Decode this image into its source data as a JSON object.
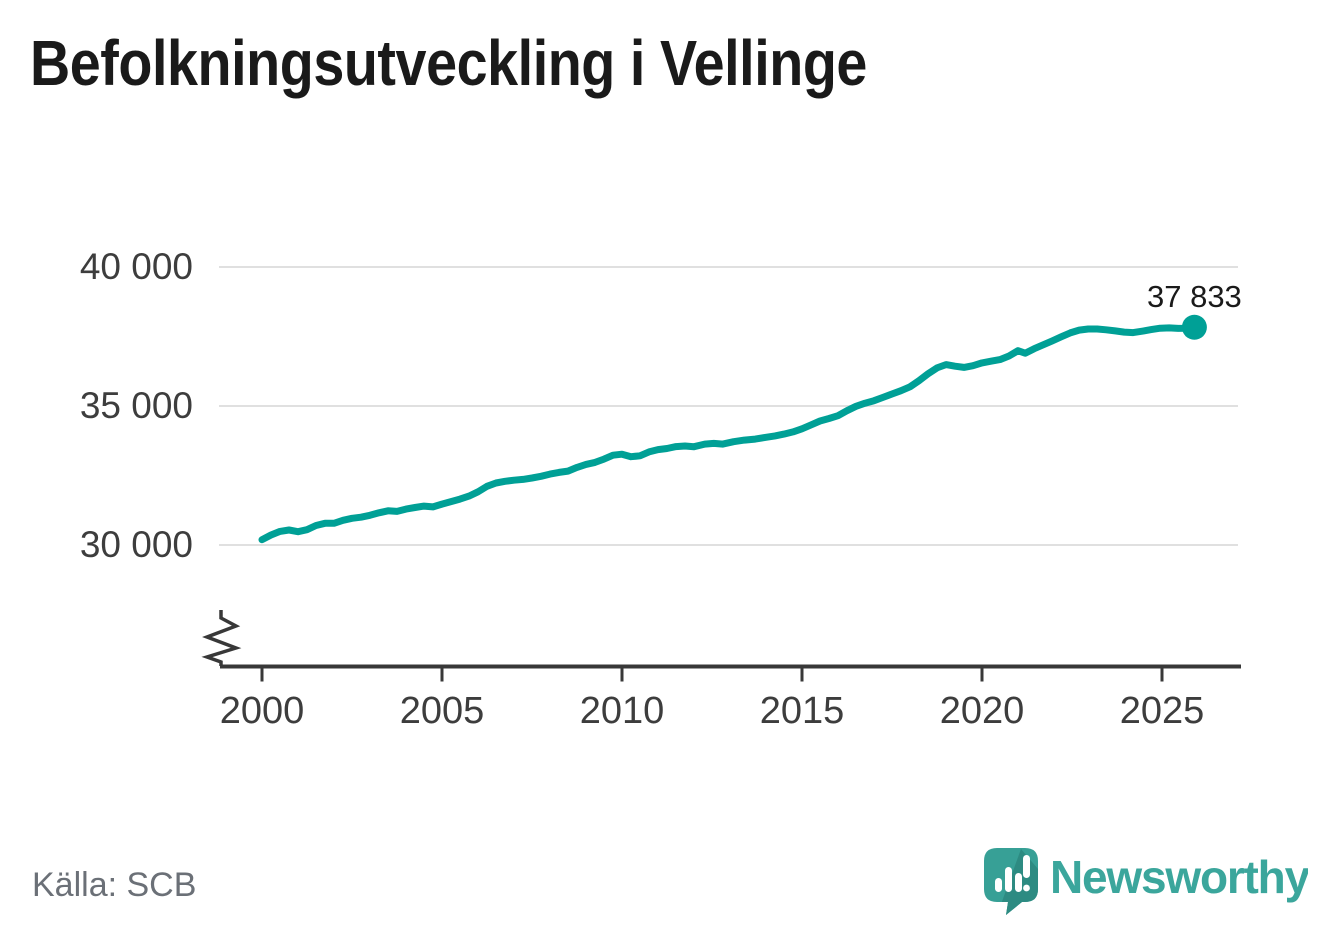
{
  "page": {
    "title": "Befolkningsutveckling i Vellinge"
  },
  "footer": {
    "source_label": "Källa: SCB",
    "brand_name": "Newsworthy"
  },
  "colors": {
    "line": "#00a096",
    "grid": "#e0e0e0",
    "axis": "#383838",
    "tick_text": "#3d3d3d",
    "annotation_text": "#1a1a1a",
    "source_text": "#6b7077",
    "brand_text": "#3ba69c",
    "brand_bubble": "#37a096",
    "brand_bubble_shade": "#2d8b82"
  },
  "chart_data": {
    "type": "line",
    "title": "Befolkningsutveckling i Vellinge",
    "xlabel": "",
    "ylabel": "",
    "grid": "horizontal-only",
    "legend": "none",
    "axis_break_bottom_left": true,
    "xlim": [
      1998.8,
      2027.2
    ],
    "ylim": [
      30000,
      40000
    ],
    "x_ticks": [
      {
        "value": 2000,
        "label": "2000"
      },
      {
        "value": 2005,
        "label": "2005"
      },
      {
        "value": 2010,
        "label": "2010"
      },
      {
        "value": 2015,
        "label": "2015"
      },
      {
        "value": 2020,
        "label": "2020"
      },
      {
        "value": 2025,
        "label": "2025"
      }
    ],
    "y_ticks": [
      {
        "value": 30000,
        "label": "30 000"
      },
      {
        "value": 35000,
        "label": "35 000"
      },
      {
        "value": 40000,
        "label": "40 000"
      }
    ],
    "end_annotation": {
      "label": "37 833",
      "value": 37833,
      "x": 2025.9
    },
    "series": [
      {
        "name": "Befolkning i Vellinge",
        "points": [
          [
            2000.0,
            30190
          ],
          [
            2000.25,
            30360
          ],
          [
            2000.5,
            30490
          ],
          [
            2000.75,
            30540
          ],
          [
            2001.0,
            30480
          ],
          [
            2001.25,
            30550
          ],
          [
            2001.5,
            30700
          ],
          [
            2001.75,
            30780
          ],
          [
            2002.0,
            30780
          ],
          [
            2002.25,
            30890
          ],
          [
            2002.5,
            30960
          ],
          [
            2002.75,
            31000
          ],
          [
            2003.0,
            31070
          ],
          [
            2003.25,
            31160
          ],
          [
            2003.5,
            31230
          ],
          [
            2003.75,
            31210
          ],
          [
            2004.0,
            31290
          ],
          [
            2004.25,
            31350
          ],
          [
            2004.5,
            31400
          ],
          [
            2004.75,
            31370
          ],
          [
            2005.0,
            31470
          ],
          [
            2005.25,
            31560
          ],
          [
            2005.5,
            31650
          ],
          [
            2005.75,
            31760
          ],
          [
            2006.0,
            31915
          ],
          [
            2006.25,
            32110
          ],
          [
            2006.5,
            32230
          ],
          [
            2006.75,
            32290
          ],
          [
            2007.0,
            32330
          ],
          [
            2007.25,
            32360
          ],
          [
            2007.5,
            32410
          ],
          [
            2007.75,
            32470
          ],
          [
            2008.0,
            32550
          ],
          [
            2008.25,
            32610
          ],
          [
            2008.5,
            32660
          ],
          [
            2008.75,
            32790
          ],
          [
            2009.0,
            32900
          ],
          [
            2009.25,
            32970
          ],
          [
            2009.5,
            33090
          ],
          [
            2009.75,
            33230
          ],
          [
            2010.0,
            33265
          ],
          [
            2010.25,
            33175
          ],
          [
            2010.5,
            33210
          ],
          [
            2010.75,
            33350
          ],
          [
            2011.0,
            33430
          ],
          [
            2011.25,
            33470
          ],
          [
            2011.5,
            33540
          ],
          [
            2011.75,
            33560
          ],
          [
            2012.0,
            33535
          ],
          [
            2012.3,
            33630
          ],
          [
            2012.55,
            33655
          ],
          [
            2012.8,
            33630
          ],
          [
            2013.1,
            33715
          ],
          [
            2013.4,
            33775
          ],
          [
            2013.7,
            33810
          ],
          [
            2014.0,
            33875
          ],
          [
            2014.25,
            33925
          ],
          [
            2014.5,
            33990
          ],
          [
            2014.75,
            34070
          ],
          [
            2015.0,
            34180
          ],
          [
            2015.25,
            34320
          ],
          [
            2015.5,
            34460
          ],
          [
            2015.75,
            34550
          ],
          [
            2016.0,
            34650
          ],
          [
            2016.25,
            34830
          ],
          [
            2016.5,
            34990
          ],
          [
            2016.75,
            35100
          ],
          [
            2017.0,
            35190
          ],
          [
            2017.25,
            35310
          ],
          [
            2017.5,
            35430
          ],
          [
            2017.75,
            35550
          ],
          [
            2018.0,
            35690
          ],
          [
            2018.25,
            35910
          ],
          [
            2018.5,
            36160
          ],
          [
            2018.75,
            36370
          ],
          [
            2019.0,
            36490
          ],
          [
            2019.25,
            36430
          ],
          [
            2019.5,
            36390
          ],
          [
            2019.75,
            36450
          ],
          [
            2020.0,
            36550
          ],
          [
            2020.25,
            36610
          ],
          [
            2020.5,
            36670
          ],
          [
            2020.75,
            36800
          ],
          [
            2021.0,
            36990
          ],
          [
            2021.2,
            36900
          ],
          [
            2021.45,
            37060
          ],
          [
            2021.7,
            37200
          ],
          [
            2021.95,
            37340
          ],
          [
            2022.2,
            37490
          ],
          [
            2022.45,
            37630
          ],
          [
            2022.7,
            37730
          ],
          [
            2022.95,
            37770
          ],
          [
            2023.2,
            37770
          ],
          [
            2023.45,
            37740
          ],
          [
            2023.7,
            37700
          ],
          [
            2023.95,
            37660
          ],
          [
            2024.2,
            37640
          ],
          [
            2024.45,
            37690
          ],
          [
            2024.7,
            37750
          ],
          [
            2024.95,
            37800
          ],
          [
            2025.2,
            37810
          ],
          [
            2025.45,
            37790
          ],
          [
            2025.65,
            37800
          ],
          [
            2025.9,
            37833
          ]
        ]
      }
    ]
  }
}
